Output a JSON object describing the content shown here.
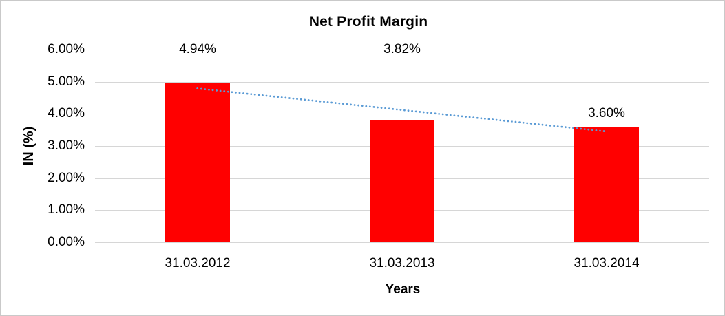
{
  "frame": {
    "background": "#ffffff",
    "border_color": "#c9c9c9"
  },
  "chart_data": {
    "type": "bar",
    "title": "Net Profit Margin",
    "xlabel": "Years",
    "ylabel": "IN (%)",
    "categories": [
      "31.03.2012",
      "31.03.2013",
      "31.03.2014"
    ],
    "series": [
      {
        "name": "Net Profit Margin",
        "color": "#ff0000",
        "values": [
          4.94,
          3.82,
          3.6
        ]
      }
    ],
    "points": [
      {
        "category": "31.03.2012",
        "value": 4.94,
        "label": "4.94%",
        "label_at_value": 6.0
      },
      {
        "category": "31.03.2013",
        "value": 3.82,
        "label": "3.82%",
        "label_at_value": 6.0
      },
      {
        "category": "31.03.2014",
        "value": 3.6,
        "label": "3.60%",
        "label_at_value": 4.0
      }
    ],
    "ylim": [
      0,
      6
    ],
    "yticks": [
      {
        "value": 0,
        "label": "0.00%"
      },
      {
        "value": 1,
        "label": "1.00%"
      },
      {
        "value": 2,
        "label": "2.00%"
      },
      {
        "value": 3,
        "label": "3.00%"
      },
      {
        "value": 4,
        "label": "4.00%"
      },
      {
        "value": 5,
        "label": "5.00%"
      },
      {
        "value": 6,
        "label": "6.00%"
      }
    ],
    "grid": true,
    "gridline_color": "#d6d6d6",
    "legend": false,
    "trendline": {
      "type": "linear",
      "style": "dotted",
      "color": "#5b9bd5",
      "start_value": 4.79,
      "end_value": 3.45
    }
  }
}
